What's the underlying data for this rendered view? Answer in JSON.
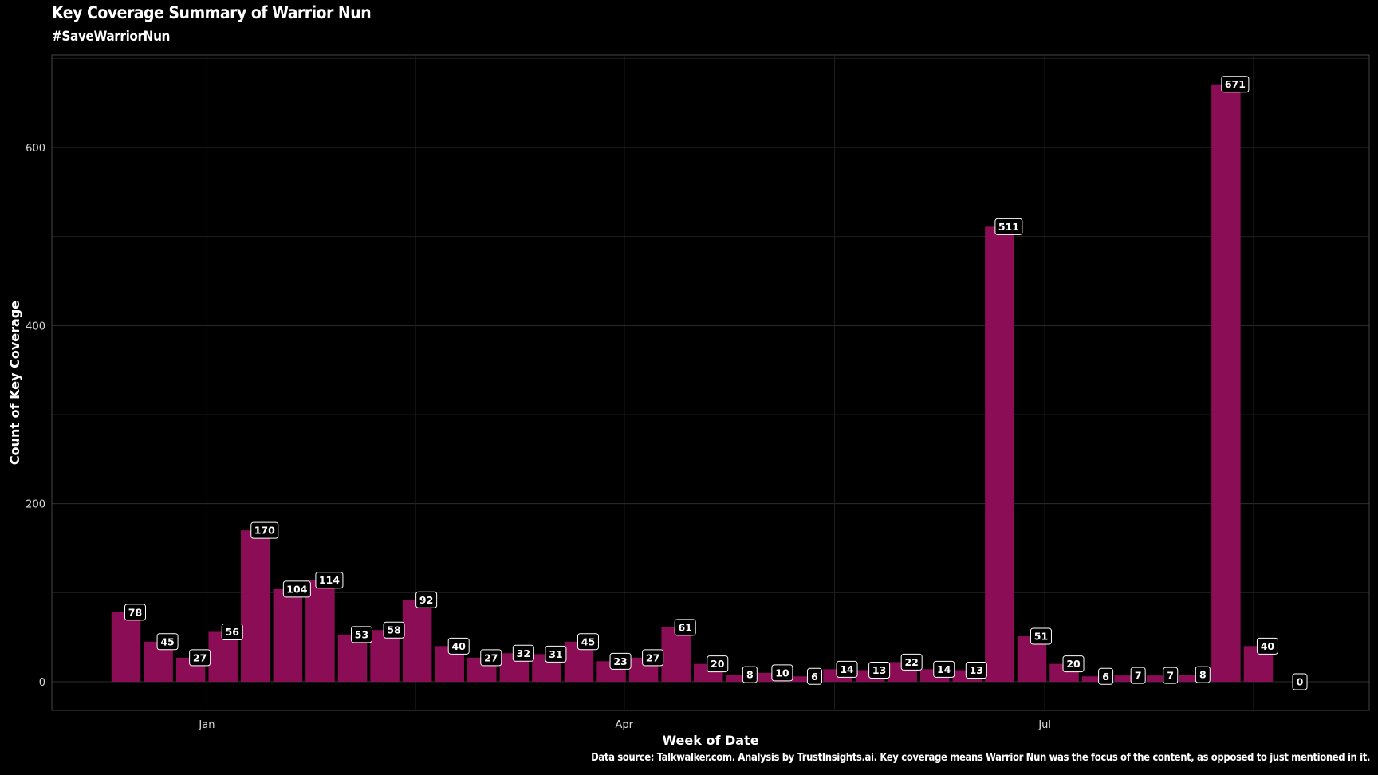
{
  "chart_data": {
    "type": "bar",
    "title": "Key Coverage Summary of Warrior Nun",
    "subtitle": "#SaveWarriorNun",
    "xlabel": "Week of Date",
    "ylabel": "Count of Key Coverage",
    "caption": "Data source: Talkwalker.com. Analysis by TrustInsights.ai. Key coverage means Warrior Nun was the focus of the content, as opposed to just mentioned in it.",
    "ylim": [
      0,
      700
    ],
    "yticks": [
      0,
      200,
      400,
      600
    ],
    "xticks": [
      {
        "label": "Jan",
        "week_index": 2.5
      },
      {
        "label": "Apr",
        "week_index": 15.4
      },
      {
        "label": "Jul",
        "week_index": 28.4
      }
    ],
    "values": [
      78,
      45,
      27,
      56,
      170,
      104,
      114,
      53,
      58,
      92,
      40,
      27,
      32,
      31,
      45,
      23,
      27,
      61,
      20,
      8,
      10,
      6,
      14,
      13,
      22,
      14,
      13,
      511,
      51,
      20,
      6,
      7,
      7,
      8,
      671,
      40,
      0
    ],
    "bar_color": "#8b0d55",
    "grid": true
  }
}
